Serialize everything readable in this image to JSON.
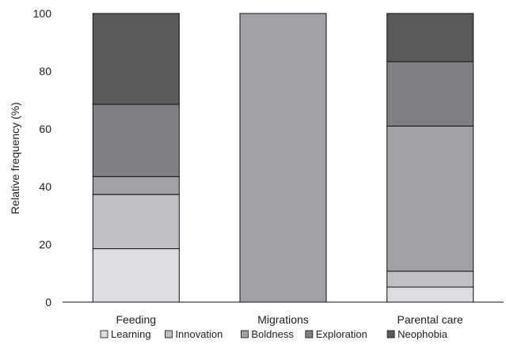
{
  "chart_data": {
    "type": "bar",
    "stacked": true,
    "ylabel": "Relative frequency (%)",
    "xlabel": "",
    "ylim": [
      0,
      100
    ],
    "yticks": [
      0,
      20,
      40,
      60,
      80,
      100
    ],
    "categories": [
      "Feeding",
      "Migrations",
      "Parental care"
    ],
    "series": [
      {
        "name": "Learning",
        "color": "#dcdde0",
        "values": [
          18.5,
          0,
          5.2
        ]
      },
      {
        "name": "Innovation",
        "color": "#bebfc3",
        "values": [
          18.8,
          0,
          5.5
        ]
      },
      {
        "name": "Boldness",
        "color": "#a0a1a5",
        "values": [
          6.2,
          100,
          50.3
        ]
      },
      {
        "name": "Exploration",
        "color": "#7f8084",
        "values": [
          25.0,
          0,
          22.3
        ]
      },
      {
        "name": "Neophobia",
        "color": "#5a5a5c",
        "values": [
          31.5,
          0,
          16.7
        ]
      }
    ],
    "legend_position": "bottom",
    "grid": false
  }
}
